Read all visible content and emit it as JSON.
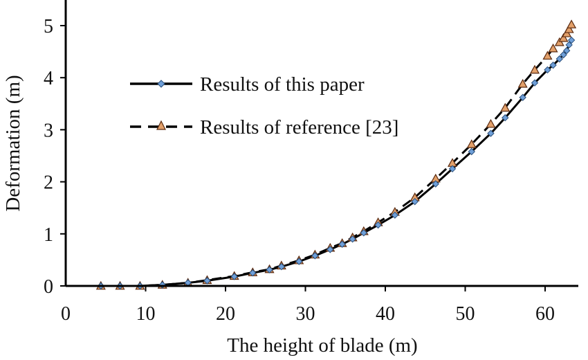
{
  "chart_data": {
    "type": "line",
    "title": "",
    "xlabel": "The height of blade (m)",
    "ylabel": "Deformation (m)",
    "xlim": [
      0,
      65
    ],
    "ylim": [
      0,
      5.5
    ],
    "x_ticks": [
      "0",
      "10",
      "20",
      "30",
      "40",
      "50",
      "60"
    ],
    "y_ticks": [
      "0",
      "1",
      "2",
      "3",
      "4",
      "5"
    ],
    "grid": false,
    "legend_position": "upper-left-center",
    "series": [
      {
        "name": "Results of this paper",
        "line_style": "solid",
        "line_color": "#000000",
        "marker": "diamond",
        "marker_color": "#6f9fd8",
        "x": [
          4.4,
          6.8,
          9.3,
          12.1,
          15.3,
          17.7,
          21.1,
          23.4,
          25.5,
          27.0,
          29.2,
          31.2,
          33.1,
          34.6,
          35.9,
          37.3,
          39.1,
          41.2,
          43.7,
          46.3,
          48.4,
          50.8,
          53.2,
          55.0,
          57.2,
          58.7,
          60.3,
          61.0,
          61.8,
          62.3,
          62.7,
          63.0,
          63.3
        ],
        "y": [
          0,
          0,
          0,
          0.02,
          0.06,
          0.1,
          0.18,
          0.25,
          0.31,
          0.37,
          0.47,
          0.58,
          0.7,
          0.8,
          0.9,
          1.02,
          1.17,
          1.36,
          1.62,
          1.96,
          2.25,
          2.58,
          2.93,
          3.23,
          3.62,
          3.9,
          4.15,
          4.24,
          4.36,
          4.44,
          4.52,
          4.63,
          4.72
        ]
      },
      {
        "name": "Results of reference [23]",
        "line_style": "dashed",
        "line_color": "#000000",
        "marker": "triangle",
        "marker_color": "#e2a06a",
        "x": [
          4.4,
          6.8,
          9.3,
          12.1,
          15.3,
          17.7,
          21.1,
          23.4,
          25.5,
          27.0,
          29.2,
          31.2,
          33.1,
          34.6,
          35.9,
          37.3,
          39.1,
          41.2,
          43.7,
          46.3,
          48.4,
          50.8,
          53.2,
          55.0,
          57.2,
          58.7,
          60.3,
          61.0,
          61.8,
          62.3,
          62.7,
          63.0,
          63.3
        ],
        "y": [
          0,
          0,
          0,
          0.02,
          0.06,
          0.11,
          0.19,
          0.26,
          0.32,
          0.39,
          0.49,
          0.6,
          0.73,
          0.82,
          0.93,
          1.05,
          1.22,
          1.42,
          1.7,
          2.06,
          2.36,
          2.72,
          3.11,
          3.42,
          3.88,
          4.15,
          4.42,
          4.56,
          4.68,
          4.76,
          4.85,
          4.93,
          5.02
        ]
      }
    ]
  }
}
